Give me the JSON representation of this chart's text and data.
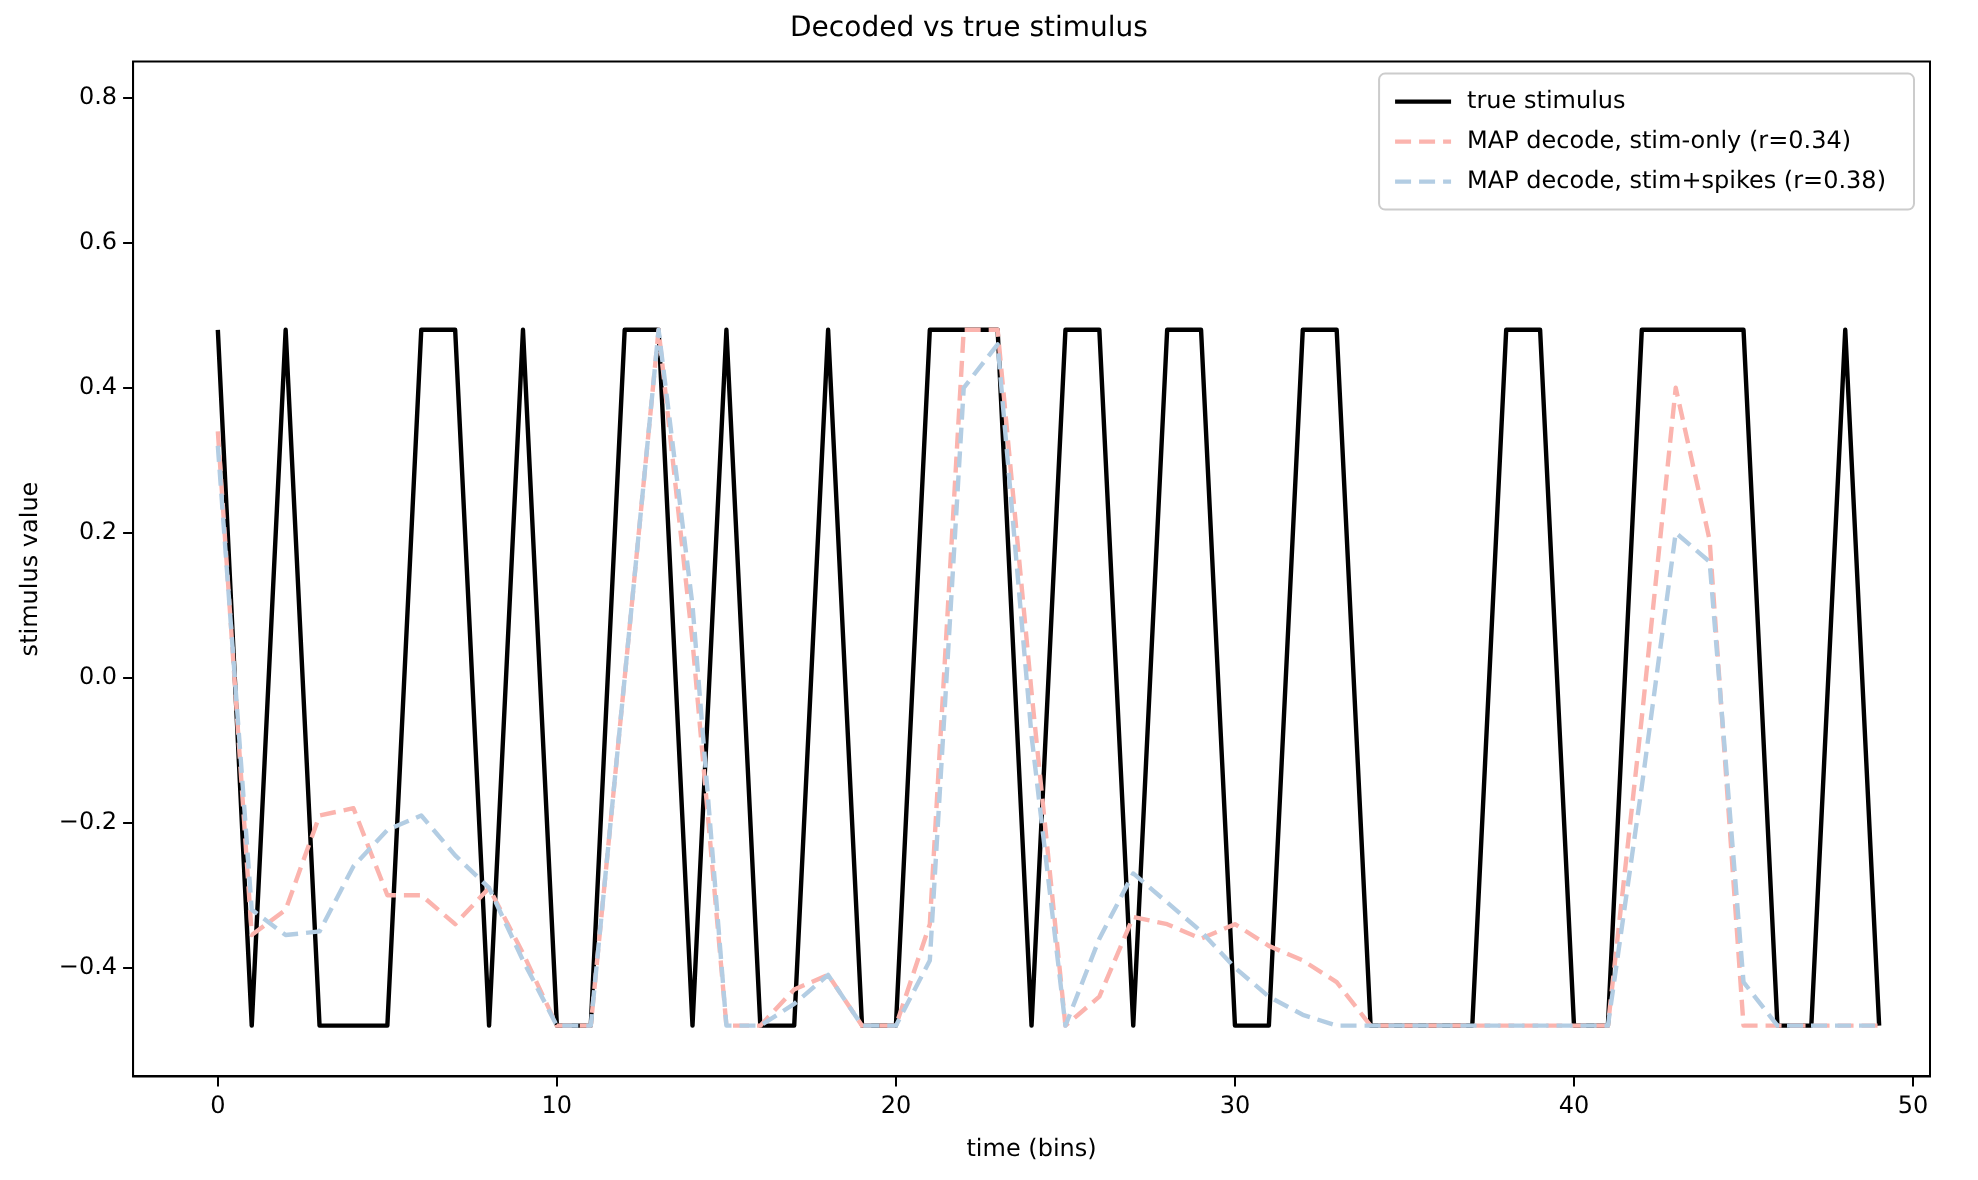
{
  "chart_data": {
    "type": "line",
    "title": "Decoded vs true stimulus",
    "xlabel": "time (bins)",
    "ylabel": "stimulus value",
    "x": [
      0,
      1,
      2,
      3,
      4,
      5,
      6,
      7,
      8,
      9,
      10,
      11,
      12,
      13,
      14,
      15,
      16,
      17,
      18,
      19,
      20,
      21,
      22,
      23,
      24,
      25,
      26,
      27,
      28,
      29,
      30,
      31,
      32,
      33,
      34,
      35,
      36,
      37,
      38,
      39,
      40,
      41,
      42,
      43,
      44,
      45,
      46,
      47,
      48,
      49
    ],
    "series": [
      {
        "name": "true stimulus",
        "color": "#000000",
        "line_style": "solid",
        "values": [
          0.48,
          -0.48,
          0.48,
          -0.48,
          -0.48,
          -0.48,
          0.48,
          0.48,
          -0.48,
          0.48,
          -0.48,
          -0.48,
          0.48,
          0.48,
          -0.48,
          0.48,
          -0.48,
          -0.48,
          0.48,
          -0.48,
          -0.48,
          0.48,
          0.48,
          0.48,
          -0.48,
          0.48,
          0.48,
          -0.48,
          0.48,
          0.48,
          -0.48,
          -0.48,
          0.48,
          0.48,
          -0.48,
          -0.48,
          -0.48,
          -0.48,
          0.48,
          0.48,
          -0.48,
          -0.48,
          0.48,
          0.48,
          0.48,
          0.48,
          -0.48,
          -0.48,
          0.48,
          -0.48
        ]
      },
      {
        "name": "MAP decode, stim-only (r=0.34)",
        "color": "#fbb4ae",
        "line_style": "dashed",
        "values": [
          0.34,
          -0.355,
          -0.32,
          -0.19,
          -0.18,
          -0.3,
          -0.3,
          -0.34,
          -0.29,
          -0.38,
          -0.48,
          -0.48,
          0.0,
          0.48,
          0.05,
          -0.48,
          -0.48,
          -0.43,
          -0.41,
          -0.48,
          -0.48,
          -0.34,
          0.48,
          0.48,
          -0.02,
          -0.48,
          -0.44,
          -0.33,
          -0.34,
          -0.36,
          -0.34,
          -0.37,
          -0.39,
          -0.42,
          -0.48,
          -0.48,
          -0.48,
          -0.48,
          -0.48,
          -0.48,
          -0.48,
          -0.48,
          -0.055,
          0.4,
          0.19,
          -0.48,
          -0.48,
          -0.48,
          -0.48,
          -0.48
        ]
      },
      {
        "name": "MAP decode, stim+spikes (r=0.38)",
        "color": "#b3cde3",
        "line_style": "dashed",
        "values": [
          0.32,
          -0.32,
          -0.355,
          -0.35,
          -0.26,
          -0.21,
          -0.19,
          -0.245,
          -0.29,
          -0.39,
          -0.48,
          -0.48,
          0.0,
          0.48,
          0.1,
          -0.48,
          -0.48,
          -0.45,
          -0.41,
          -0.48,
          -0.48,
          -0.39,
          0.4,
          0.46,
          -0.08,
          -0.48,
          -0.36,
          -0.27,
          -0.31,
          -0.35,
          -0.4,
          -0.44,
          -0.465,
          -0.48,
          -0.48,
          -0.48,
          -0.48,
          -0.48,
          -0.48,
          -0.48,
          -0.48,
          -0.48,
          -0.15,
          0.2,
          0.16,
          -0.42,
          -0.48,
          -0.48,
          -0.48,
          -0.48
        ]
      }
    ],
    "xlim": [
      -2.5,
      50.5
    ],
    "ylim": [
      -0.55,
      0.85
    ],
    "xticks": [
      0,
      10,
      20,
      30,
      40,
      50
    ],
    "yticks": [
      {
        "value": -0.4,
        "label": "−0.4"
      },
      {
        "value": -0.2,
        "label": "−0.2"
      },
      {
        "value": 0,
        "label": "0.0"
      },
      {
        "value": 0.2,
        "label": "0.2"
      },
      {
        "value": 0.4,
        "label": "0.4"
      },
      {
        "value": 0.6,
        "label": "0.6"
      },
      {
        "value": 0.8,
        "label": "0.8"
      }
    ],
    "grid": false,
    "legend": "top right",
    "marker": "none"
  }
}
